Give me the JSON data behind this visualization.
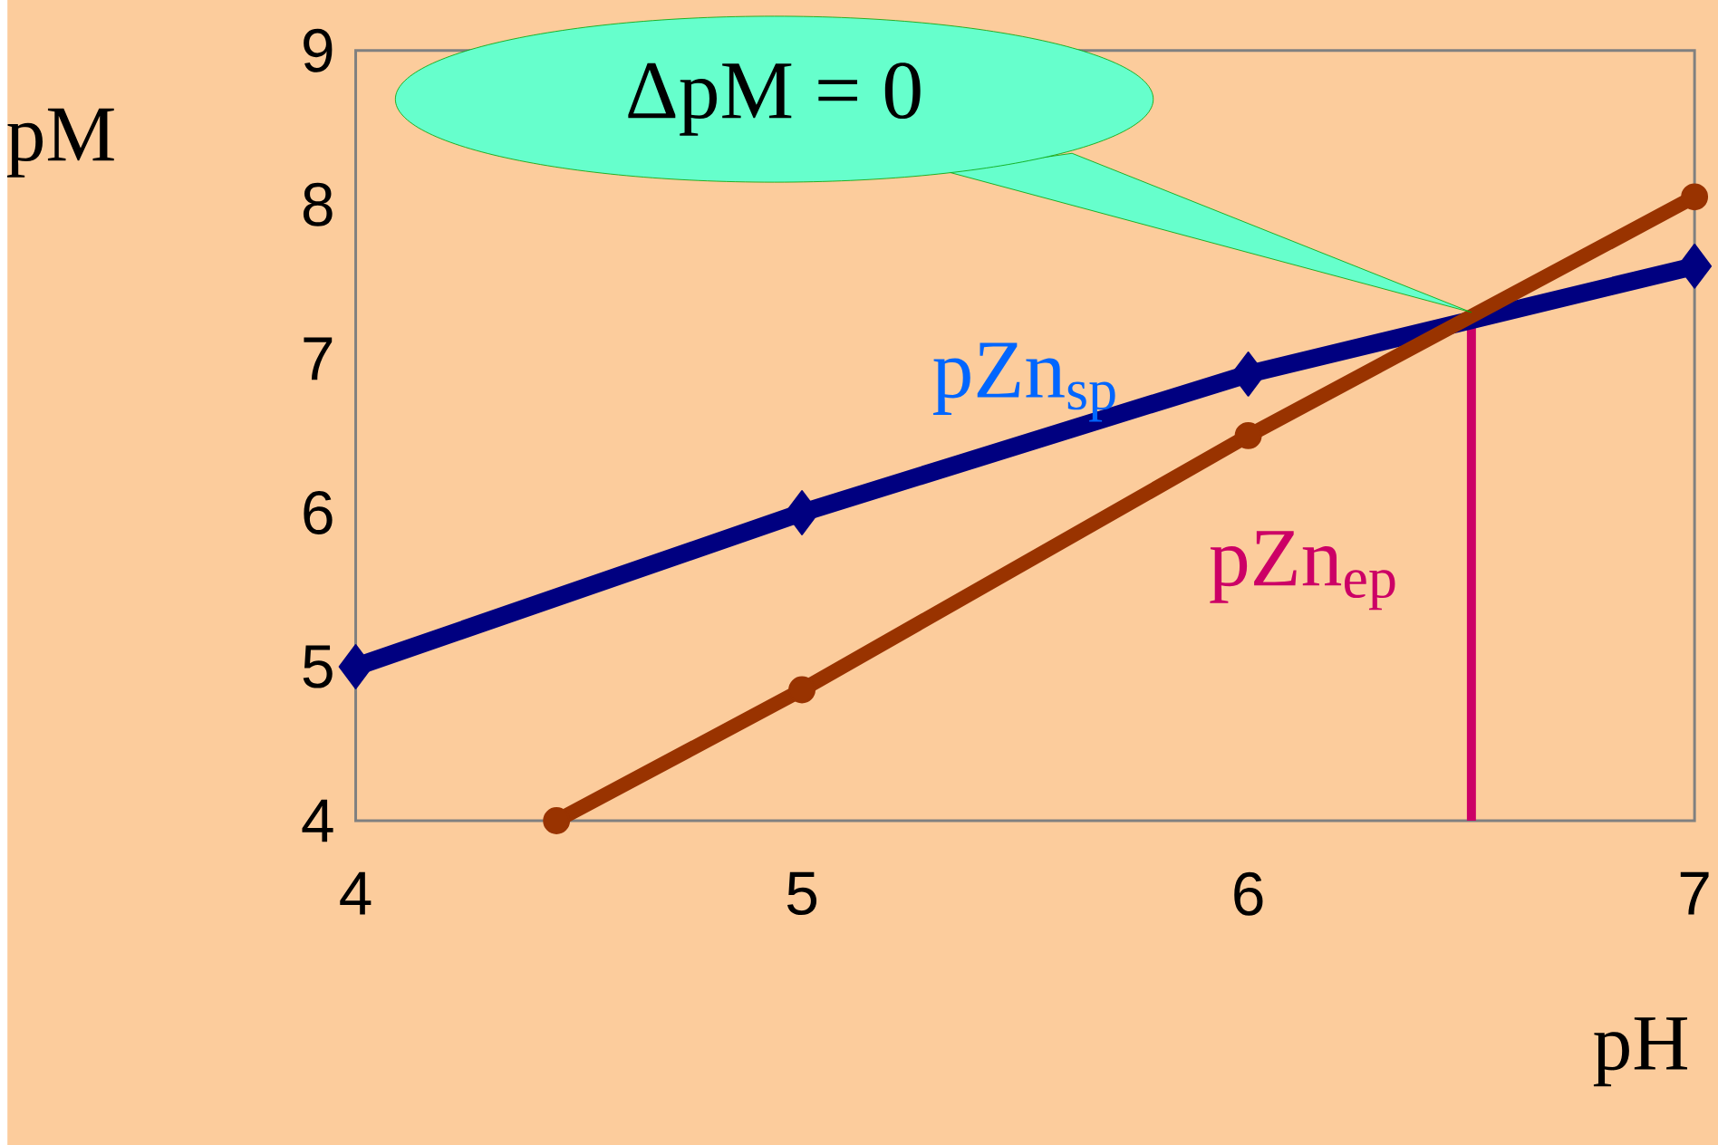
{
  "chart_data": {
    "type": "line",
    "xlabel": "pH",
    "ylabel": "pM",
    "series": [
      {
        "name": "pZn$_{sp}$",
        "color": "#000080",
        "marker": "diamond",
        "x": [
          4,
          5,
          6,
          7
        ],
        "values": [
          5,
          6,
          6.9,
          7.6
        ]
      },
      {
        "color": "#993300",
        "marker": "circle",
        "x": [
          4.45,
          5,
          6,
          7
        ],
        "values": [
          4,
          4.85,
          6.5,
          8.05
        ]
      }
    ],
    "xlim": [
      4,
      7
    ],
    "ylim": [
      4,
      9
    ],
    "xticks": [
      4,
      5,
      6,
      7
    ],
    "yticks": [
      4,
      5,
      6,
      7,
      8,
      9
    ],
    "ref_lines": [
      {
        "axis": "x",
        "value": 6.5,
        "label": "pZn$_{ep}$",
        "color": "#cc0066"
      }
    ],
    "annotations": [
      {
        "text": "ΔpM = 0",
        "x": 6.5,
        "y": 7.3
      }
    ]
  }
}
